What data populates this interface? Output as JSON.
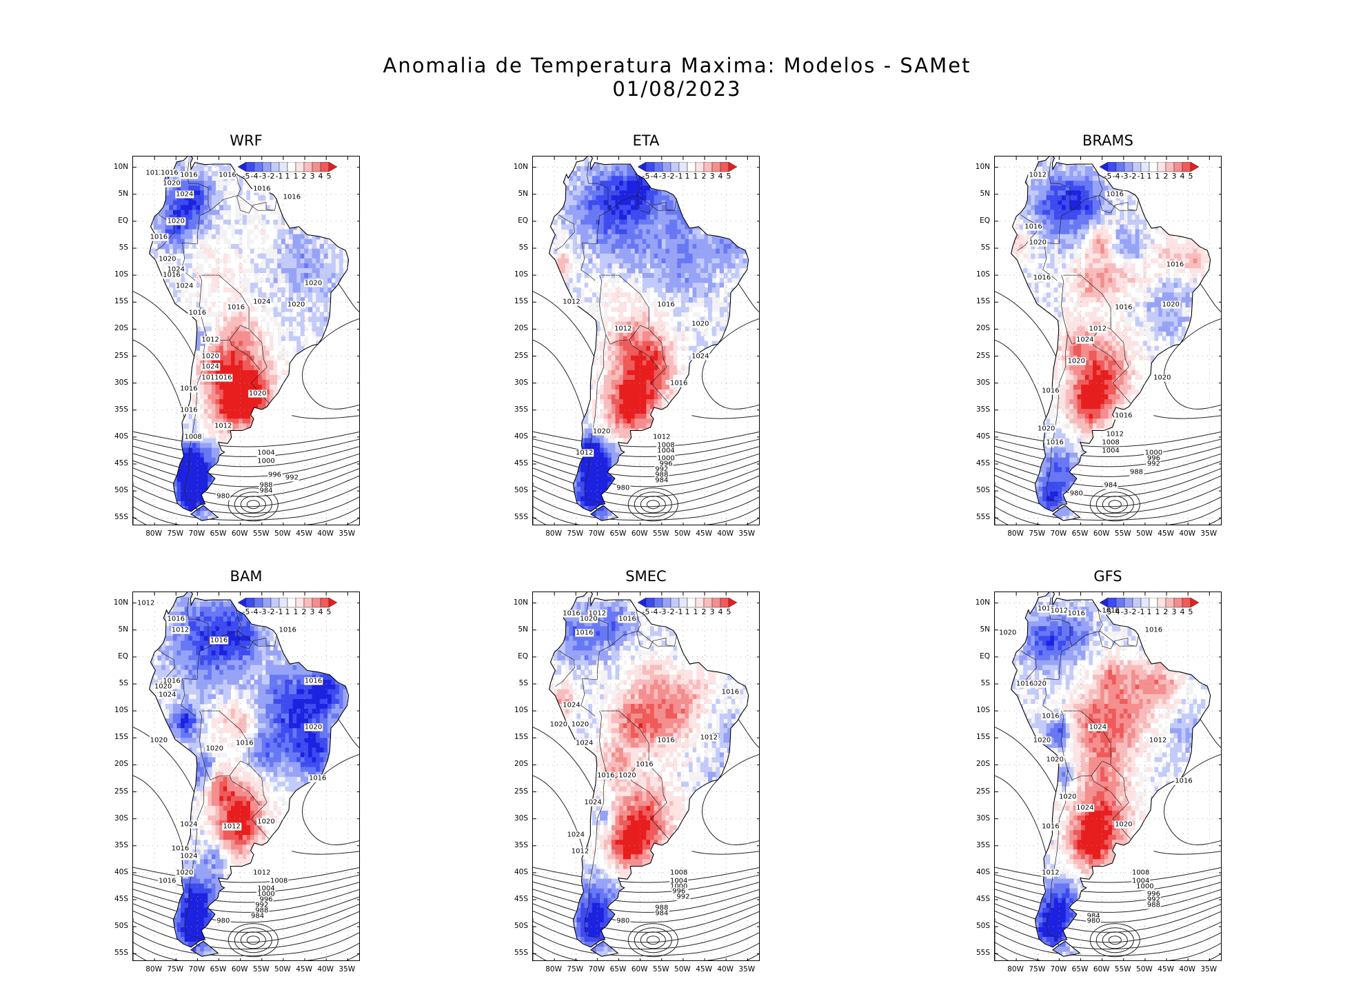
{
  "header": {
    "title": "Anomalia de Temperatura Maxima: Modelos - SAMet",
    "date": "01/08/2023"
  },
  "axes": {
    "lat_labels": [
      "10N",
      "5N",
      "EQ",
      "5S",
      "10S",
      "15S",
      "20S",
      "25S",
      "30S",
      "35S",
      "40S",
      "45S",
      "50S",
      "55S"
    ],
    "lon_labels": [
      "80W",
      "75W",
      "70W",
      "65W",
      "60W",
      "55W",
      "50W",
      "45W",
      "40W",
      "35W"
    ]
  },
  "colorbar": {
    "labels": [
      "-5",
      "-4",
      "-3",
      "-2",
      "-1",
      "1",
      "1",
      "2",
      "3",
      "4",
      "5"
    ],
    "colors": [
      "#1d22e0",
      "#3d4bf0",
      "#6878f5",
      "#97a3f7",
      "#c3cbfa",
      "#e4e8fc",
      "#ffffff",
      "#fde3e3",
      "#f9bcbc",
      "#f58e8e",
      "#ef5a5a",
      "#e81e1e"
    ],
    "cold": "#2230d8",
    "warm": "#e6181c",
    "neutral": "#f4f2f4"
  },
  "panels": [
    {
      "id": "wrf",
      "name": "WRF",
      "isobar_labels": [
        "1012",
        "1016",
        "1016",
        "1016",
        "1016",
        "1020",
        "1016",
        "1024",
        "1020",
        "1016",
        "1020",
        "1024",
        "1016",
        "1024",
        "1016",
        "1016",
        "1020",
        "1012",
        "1020",
        "1024",
        "1016",
        "1024",
        "1016",
        "1020",
        "1020",
        "1016",
        "1016",
        "1012",
        "1008",
        "1004",
        "1000",
        "996",
        "992",
        "988",
        "984",
        "980"
      ]
    },
    {
      "id": "eta",
      "name": "ETA",
      "isobar_labels": [
        "1012",
        "1016",
        "1012",
        "1020",
        "1024",
        "1016",
        "1020",
        "1012",
        "1008",
        "1004",
        "1000",
        "996",
        "992",
        "988",
        "984",
        "980",
        "1012"
      ]
    },
    {
      "id": "brams",
      "name": "BRAMS",
      "isobar_labels": [
        "1012",
        "1016",
        "1016",
        "1020",
        "1016",
        "1016",
        "1016",
        "1020",
        "1024",
        "1012",
        "1020",
        "1020",
        "1016",
        "1016",
        "1020",
        "1012",
        "1016",
        "1008",
        "1004",
        "1000",
        "996",
        "992",
        "988",
        "984",
        "980"
      ]
    },
    {
      "id": "bam",
      "name": "BAM",
      "isobar_labels": [
        "1012",
        "1016",
        "1012",
        "1016",
        "1016",
        "1016",
        "1020",
        "1024",
        "1016",
        "1020",
        "1020",
        "1020",
        "1016",
        "1024",
        "1016",
        "1012",
        "1020",
        "1016",
        "1024",
        "1020",
        "1016",
        "1012",
        "1008",
        "1004",
        "1000",
        "996",
        "992",
        "988",
        "984",
        "980"
      ]
    },
    {
      "id": "smec",
      "name": "SMEC",
      "isobar_labels": [
        "1016",
        "1012",
        "1016",
        "1020",
        "1016",
        "1016",
        "1024",
        "1020",
        "1020",
        "1024",
        "1016",
        "1012",
        "1016",
        "1020",
        "1016",
        "1024",
        "1024",
        "1012",
        "1008",
        "1004",
        "1000",
        "996",
        "992",
        "988",
        "984",
        "980"
      ]
    },
    {
      "id": "gfs",
      "name": "GFS",
      "isobar_labels": [
        "1016",
        "1012",
        "1016",
        "1016",
        "1016",
        "1020",
        "1020",
        "1016",
        "1016",
        "1024",
        "1020",
        "1012",
        "1020",
        "1016",
        "1020",
        "1024",
        "1016",
        "1020",
        "1012",
        "1008",
        "1004",
        "1000",
        "996",
        "992",
        "988",
        "984",
        "980"
      ]
    }
  ]
}
